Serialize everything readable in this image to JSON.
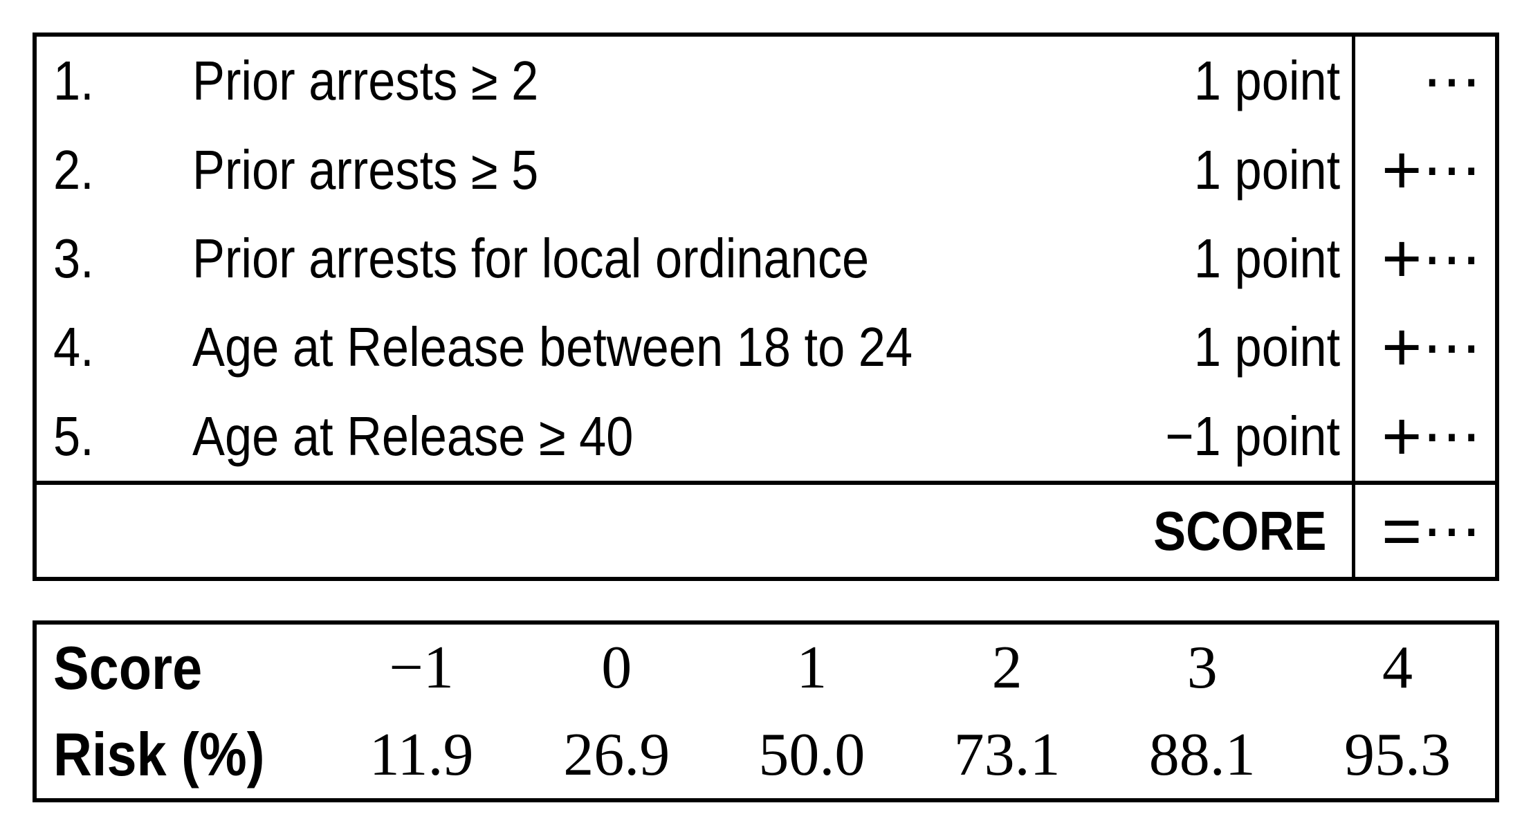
{
  "score_sheet": {
    "rows": [
      {
        "num": "1.",
        "label": "Prior arrests ≥ 2",
        "points": "1 point",
        "op": "",
        "dots": "⋯"
      },
      {
        "num": "2.",
        "label": "Prior arrests ≥ 5",
        "points": "1 point",
        "op": "+",
        "dots": "⋯"
      },
      {
        "num": "3.",
        "label": "Prior arrests for local ordinance",
        "points": "1 point",
        "op": "+",
        "dots": "⋯"
      },
      {
        "num": "4.",
        "label": "Age at Release between 18 to 24",
        "points": "1 point",
        "op": "+",
        "dots": "⋯"
      },
      {
        "num": "5.",
        "label": "Age at Release ≥ 40",
        "points": "−1 point",
        "op": "+",
        "dots": "⋯"
      }
    ],
    "total_row": {
      "label": "SCORE",
      "op": "=",
      "dots": "⋯"
    }
  },
  "risk_table": {
    "score_label": "Score",
    "risk_label": "Risk (%)",
    "scores": [
      "−1",
      "0",
      "1",
      "2",
      "3",
      "4"
    ],
    "risks": [
      "11.9",
      "26.9",
      "50.0",
      "73.1",
      "88.1",
      "95.3"
    ]
  },
  "colors": {
    "ink": "#000000",
    "background": "#ffffff",
    "border": "#000000"
  }
}
